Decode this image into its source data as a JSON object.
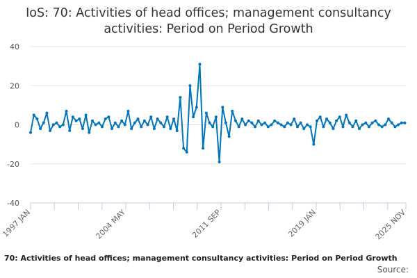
{
  "chart_data": {
    "type": "line",
    "title": "IoS: 70: Activities of head offices; management consultancy activities: Period on Period Growth",
    "subtitle": "70: Activities of head offices; management consultancy activities: Period on Period Growth",
    "source_label": "Source:",
    "xlabel": "",
    "ylabel": "",
    "ylim": [
      -40,
      40
    ],
    "yticks": [
      40,
      20,
      0,
      -20,
      -40
    ],
    "xticks": [
      "1997 JAN",
      "2004 MAY",
      "2011 SEP",
      "2019 JAN",
      "2025 NOV"
    ],
    "grid": true,
    "legend": "none",
    "color": "#0075be",
    "start": "1997 JAN",
    "end": "2025 NOV",
    "step_months": 3,
    "values": [
      -4,
      5,
      3,
      -2,
      1,
      6,
      -3,
      0,
      1,
      -1,
      0,
      7,
      -3,
      4,
      2,
      3,
      -2,
      5,
      -4,
      2,
      0,
      1,
      -1,
      3,
      4,
      -2,
      1,
      -1,
      2,
      0,
      7,
      -2,
      1,
      3,
      -1,
      2,
      0,
      4,
      -2,
      3,
      1,
      -1,
      4,
      -2,
      3,
      -3,
      14,
      -12,
      -14,
      20,
      4,
      9,
      31,
      -12,
      6,
      1,
      -1,
      4,
      -19,
      9,
      1,
      -6,
      7,
      2,
      -1,
      3,
      0,
      2,
      1,
      -1,
      2,
      0,
      1,
      -1,
      0,
      2,
      1,
      0,
      -1,
      1,
      0,
      3,
      -1,
      1,
      -2,
      0,
      -1,
      -10,
      2,
      4,
      -1,
      3,
      1,
      -2,
      2,
      4,
      -1,
      5,
      1,
      -1,
      2,
      -2,
      0,
      1,
      -1,
      1,
      2,
      0,
      -1,
      0,
      3,
      1,
      -1,
      0,
      1,
      1
    ]
  }
}
